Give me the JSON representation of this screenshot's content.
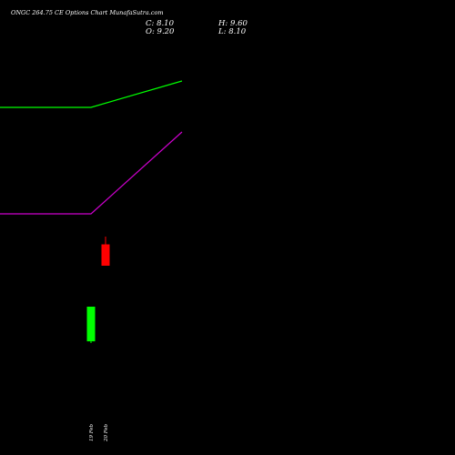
{
  "header": {
    "title": "ONGC 264.75 CE Options  Chart MunafaSutra.com",
    "close": "C: 8.10",
    "open": "O: 9.20",
    "high": "H: 9.60",
    "low": "L: 8.10"
  },
  "chart_data": {
    "type": "candlestick",
    "title": "ONGC 264.75 CE Options  Chart MunafaSutra.com",
    "categories": [
      "19 Feb",
      "20 Feb"
    ],
    "series": [
      {
        "values": [
          {
            "date": "19 Feb",
            "open": 8.0,
            "high": 10.0,
            "low": 7.9,
            "close": 10.0
          },
          {
            "date": "20 Feb",
            "open": 9.2,
            "high": 9.6,
            "low": 8.1,
            "close": 8.1
          }
        ]
      }
    ],
    "overlays": [
      {
        "color": "#00ff00",
        "points": [
          {
            "x": "start",
            "y": 1.0
          },
          {
            "x": "19 Feb",
            "y": 1.0
          },
          {
            "x": "next",
            "y": 1.6
          }
        ]
      },
      {
        "color": "#cc00cc",
        "points": [
          {
            "x": "start",
            "y": 1.0
          },
          {
            "x": "19 Feb",
            "y": 1.0
          },
          {
            "x": "next",
            "y": 2.8
          }
        ]
      }
    ],
    "colors": {
      "up": "#00ff00",
      "down": "#ff0000",
      "background": "#000000"
    },
    "grid": false
  }
}
